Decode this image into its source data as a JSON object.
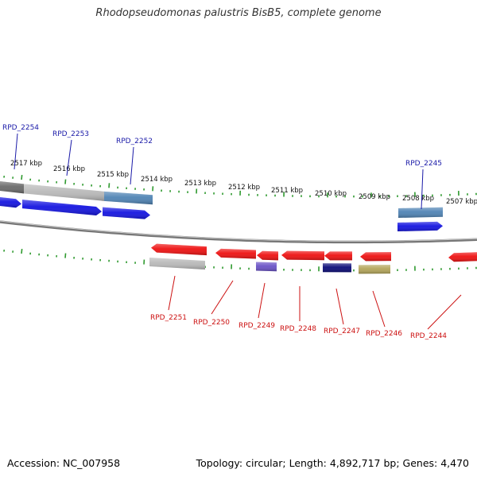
{
  "title": "Rhodopseudomonas palustris BisB5, complete genome",
  "footer": {
    "accession": "Accession: NC_007958",
    "summary": "Topology: circular; Length: 4,892,717 bp; Genes: 4,470"
  },
  "colors": {
    "backbone": "#777777",
    "tick": "#2f9a2f",
    "forward_label": "#1a1aa8",
    "reverse_label": "#cc1111",
    "gene_blue": "#1414e0",
    "gene_steel": "#4f83b4",
    "gene_gray": "#b9b9b9",
    "gene_darkgray": "#6a6a6a",
    "gene_red": "#ee1111",
    "gene_navy": "#0b0b78",
    "gene_purple": "#6a52c6",
    "gene_olive": "#b3a55a"
  },
  "kbp_labels": [
    "2517 kbp",
    "2516 kbp",
    "2515 kbp",
    "2514 kbp",
    "2513 kbp",
    "2512 kbp",
    "2511 kbp",
    "2510 kbp",
    "2509 kbp",
    "2508 kbp",
    "2507 kbp"
  ],
  "forward_genes": [
    "RPD_2254",
    "RPD_2253",
    "RPD_2252",
    "RPD_2245"
  ],
  "reverse_genes": [
    "RPD_2251",
    "RPD_2250",
    "RPD_2249",
    "RPD_2248",
    "RPD_2247",
    "RPD_2246",
    "RPD_2244"
  ]
}
